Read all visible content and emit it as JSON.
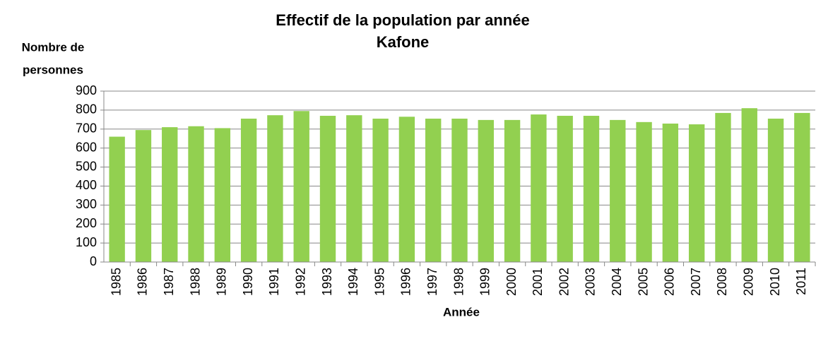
{
  "chart_data": {
    "type": "bar",
    "title": "Effectif  de la population par année",
    "subtitle": "Kafone",
    "y_label": [
      "Nombre de",
      "personnes"
    ],
    "x_label": "Année",
    "categories": [
      "1985",
      "1986",
      "1987",
      "1988",
      "1989",
      "1990",
      "1991",
      "1992",
      "1993",
      "1994",
      "1995",
      "1996",
      "1997",
      "1998",
      "1999",
      "2000",
      "2001",
      "2002",
      "2003",
      "2004",
      "2005",
      "2006",
      "2007",
      "2008",
      "2009",
      "2010",
      "2011"
    ],
    "values": [
      660,
      695,
      710,
      715,
      705,
      755,
      773,
      795,
      770,
      773,
      755,
      765,
      755,
      755,
      748,
      748,
      777,
      770,
      770,
      748,
      737,
      729,
      725,
      785,
      810,
      755,
      785
    ],
    "color": "#92d050",
    "ylim": [
      0,
      900
    ],
    "yticks": [
      0,
      100,
      200,
      300,
      400,
      500,
      600,
      700,
      800,
      900
    ],
    "grid": true
  }
}
